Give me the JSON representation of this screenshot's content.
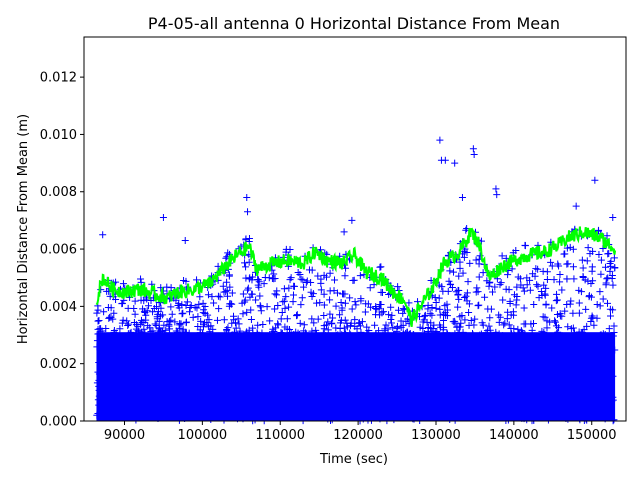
{
  "chart_data": {
    "type": "scatter",
    "title": "P4-05-all antenna 0 Horizontal Distance From Mean",
    "xlabel": "Time (sec)",
    "ylabel": "Horizontal Distance From Mean (m)",
    "xlim": [
      84800,
      154400
    ],
    "ylim": [
      0,
      0.0134
    ],
    "xticks": [
      90000,
      100000,
      110000,
      120000,
      130000,
      140000,
      150000
    ],
    "xtick_labels": [
      "90000",
      "100000",
      "110000",
      "120000",
      "130000",
      "140000",
      "150000"
    ],
    "yticks": [
      0.0,
      0.002,
      0.004,
      0.006,
      0.008,
      0.01,
      0.012
    ],
    "ytick_labels": [
      "0.000",
      "0.002",
      "0.004",
      "0.006",
      "0.008",
      "0.010",
      "0.012"
    ],
    "grid": false,
    "series": [
      {
        "marker": "+",
        "color": "#0000ff",
        "x_range": [
          86400,
          153000
        ],
        "typical_band": [
          0.0,
          0.0045
        ],
        "outliers": [
          {
            "x": 87200,
            "y": 0.0065
          },
          {
            "x": 95000,
            "y": 0.0071
          },
          {
            "x": 97800,
            "y": 0.0063
          },
          {
            "x": 105700,
            "y": 0.0078
          },
          {
            "x": 105800,
            "y": 0.0073
          },
          {
            "x": 118200,
            "y": 0.0066
          },
          {
            "x": 119200,
            "y": 0.007
          },
          {
            "x": 130500,
            "y": 0.0098
          },
          {
            "x": 130700,
            "y": 0.0091
          },
          {
            "x": 131200,
            "y": 0.0091
          },
          {
            "x": 132400,
            "y": 0.009
          },
          {
            "x": 134800,
            "y": 0.0095
          },
          {
            "x": 134900,
            "y": 0.0093
          },
          {
            "x": 133400,
            "y": 0.0078
          },
          {
            "x": 137700,
            "y": 0.0081
          },
          {
            "x": 137800,
            "y": 0.0079
          },
          {
            "x": 148000,
            "y": 0.0075
          },
          {
            "x": 150400,
            "y": 0.0084
          },
          {
            "x": 152700,
            "y": 0.0071
          }
        ]
      },
      {
        "marker": "line",
        "color": "#00ff00",
        "x": [
          86400,
          87200,
          88500,
          90000,
          92000,
          94000,
          95500,
          97000,
          99000,
          101000,
          103000,
          104500,
          106000,
          107000,
          109000,
          111000,
          113000,
          114500,
          116000,
          118000,
          119500,
          121000,
          123000,
          124500,
          126000,
          126800,
          128000,
          129500,
          131000,
          133000,
          134500,
          135500,
          136800,
          138500,
          140000,
          142000,
          144000,
          145500,
          147000,
          149000,
          151000,
          153000
        ],
        "y": [
          0.0042,
          0.005,
          0.0046,
          0.0045,
          0.0046,
          0.0044,
          0.0043,
          0.0045,
          0.0046,
          0.0048,
          0.0054,
          0.0058,
          0.0061,
          0.0053,
          0.0055,
          0.0056,
          0.0055,
          0.0059,
          0.0056,
          0.0055,
          0.0058,
          0.0052,
          0.005,
          0.0045,
          0.0042,
          0.0035,
          0.004,
          0.0046,
          0.0055,
          0.0059,
          0.0066,
          0.0062,
          0.005,
          0.0054,
          0.0056,
          0.0058,
          0.0059,
          0.0061,
          0.0064,
          0.0066,
          0.0064,
          0.006
        ]
      }
    ]
  }
}
